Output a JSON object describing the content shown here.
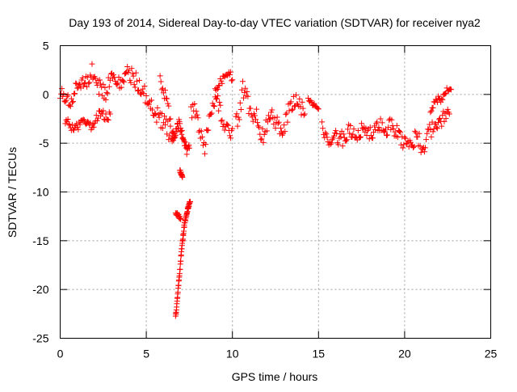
{
  "chart_data": {
    "type": "scatter",
    "title": "Day 193 of 2014, Sidereal Day-to-day VTEC variation (SDTVAR) for receiver nya2",
    "xlabel": "GPS time / hours",
    "ylabel": "SDTVAR / TECUs",
    "xlim": [
      0,
      25
    ],
    "ylim": [
      -25,
      5
    ],
    "xticks": [
      0,
      5,
      10,
      15,
      20,
      25
    ],
    "yticks": [
      5,
      0,
      -5,
      -10,
      -15,
      -20,
      -25
    ],
    "grid": true,
    "marker": "+",
    "color": "#ff0000",
    "series": [
      {
        "name": "SDTVAR",
        "segments": [
          {
            "x": [
              0.0,
              0.2,
              0.4,
              0.6,
              0.8,
              1.0,
              1.2,
              1.4,
              1.6,
              1.8,
              2.0,
              2.2,
              2.4,
              2.6,
              2.8,
              3.0,
              3.2,
              3.4,
              3.6,
              3.8,
              4.0,
              4.2,
              4.4,
              4.6,
              4.8,
              5.0,
              5.2,
              5.4,
              5.6,
              5.8,
              6.0,
              6.2,
              6.4,
              6.6
            ],
            "y": [
              0.5,
              -0.5,
              0.5,
              -1.0,
              0.0,
              0.5,
              1.0,
              1.5,
              1.5,
              2.5,
              1.5,
              1.0,
              0.5,
              0.0,
              1.0,
              2.0,
              1.5,
              1.0,
              1.5,
              2.0,
              2.0,
              2.0,
              1.5,
              1.0,
              0.5,
              -0.5,
              -1.0,
              -1.5,
              -2.0,
              -2.5,
              -3.0,
              -3.5,
              -4.0,
              -4.5
            ],
            "spread": 1.8
          },
          {
            "x": [
              0.3,
              0.5,
              0.7,
              0.9,
              1.1,
              1.3,
              1.5,
              1.7,
              1.9,
              2.1,
              2.3,
              2.5,
              2.7,
              2.9
            ],
            "y": [
              -2.5,
              -3.0,
              -3.5,
              -3.5,
              -3.0,
              -2.5,
              -3.0,
              -3.5,
              -3.0,
              -2.5,
              -2.0,
              -2.0,
              -2.5,
              -2.0
            ],
            "spread": 1.0
          },
          {
            "x": [
              5.8,
              6.0,
              6.2,
              6.4
            ],
            "y": [
              1.5,
              0.5,
              -1.0,
              -2.5
            ],
            "spread": 1.5
          },
          {
            "x": [
              6.5,
              6.6,
              6.7,
              6.8,
              6.9,
              7.0,
              7.1,
              7.2,
              7.3,
              7.4,
              7.5
            ],
            "y": [
              -4.0,
              -4.5,
              -4.0,
              -3.5,
              -3.0,
              -3.5,
              -4.0,
              -5.0,
              -5.5,
              -6.0,
              -5.5
            ],
            "spread": 1.0
          },
          {
            "x": [
              6.95,
              7.0,
              7.05,
              7.1
            ],
            "y": [
              -7.8,
              -8.0,
              -8.3,
              -8.5
            ],
            "spread": 0.3
          },
          {
            "x": [
              6.7,
              6.75,
              6.8,
              6.85,
              6.9,
              6.95,
              7.0,
              7.05,
              7.1,
              7.15,
              7.2,
              7.25,
              7.3,
              7.35,
              7.4,
              7.45,
              7.5,
              7.55
            ],
            "y": [
              -22.8,
              -22.0,
              -21.0,
              -20.0,
              -19.0,
              -18.0,
              -17.0,
              -16.0,
              -15.0,
              -14.3,
              -13.6,
              -13.0,
              -12.6,
              -12.2,
              -11.8,
              -11.5,
              -11.2,
              -11.0
            ],
            "spread": 0.4
          },
          {
            "x": [
              6.7,
              6.8,
              6.9,
              7.0
            ],
            "y": [
              -12.2,
              -12.3,
              -12.5,
              -12.8
            ],
            "spread": 0.3
          },
          {
            "x": [
              7.6,
              7.8,
              8.0,
              8.2,
              8.4,
              8.6,
              8.8,
              9.0,
              9.2,
              9.4,
              9.6,
              9.8,
              10.0
            ],
            "y": [
              -2.0,
              -1.5,
              -3.0,
              -4.0,
              -5.5,
              -3.0,
              -2.0,
              0.0,
              -1.0,
              -2.5,
              -3.5,
              -4.0,
              -3.5
            ],
            "spread": 1.5
          },
          {
            "x": [
              9.0,
              9.2,
              9.4,
              9.6,
              9.8,
              10.0
            ],
            "y": [
              0.5,
              1.0,
              1.5,
              2.0,
              2.5,
              1.5
            ],
            "spread": 0.8
          },
          {
            "x": [
              10.2,
              10.4,
              10.6,
              10.8,
              11.0,
              11.2,
              11.4,
              11.6,
              11.8,
              12.0,
              12.2,
              12.4,
              12.6,
              12.8,
              13.0,
              13.2,
              13.4,
              13.6,
              13.8,
              14.0,
              14.2
            ],
            "y": [
              -3.0,
              -2.5,
              0.5,
              0.0,
              -1.5,
              -3.0,
              -2.0,
              -3.5,
              -4.5,
              -3.0,
              -2.0,
              -2.5,
              -3.0,
              -4.0,
              -3.5,
              -2.0,
              -1.5,
              -0.5,
              -1.0,
              -1.5,
              -2.0
            ],
            "spread": 1.8
          },
          {
            "x": [
              15.2,
              15.4,
              15.6,
              15.8,
              16.0,
              16.2,
              16.4,
              16.6,
              16.8,
              17.0,
              17.2,
              17.4,
              17.6,
              17.8,
              18.0,
              18.2,
              18.4,
              18.6,
              18.8,
              19.0,
              19.2,
              19.4,
              19.6,
              19.8,
              20.0,
              20.2,
              20.4,
              20.6,
              20.8,
              21.0,
              21.2,
              21.4,
              21.6,
              21.8,
              22.0,
              22.2,
              22.4,
              22.6
            ],
            "y": [
              -3.5,
              -4.5,
              -5.0,
              -4.5,
              -4.0,
              -4.5,
              -4.5,
              -4.0,
              -3.5,
              -4.0,
              -4.5,
              -4.0,
              -3.5,
              -3.5,
              -4.0,
              -4.0,
              -3.5,
              -3.0,
              -3.5,
              -3.5,
              -3.0,
              -3.5,
              -4.0,
              -4.5,
              -5.0,
              -5.5,
              -5.0,
              -4.5,
              -4.5,
              -5.5,
              -5.0,
              -4.0,
              -3.5,
              -3.0,
              -2.5,
              -2.5,
              -2.0,
              -2.0
            ],
            "spread": 1.6
          },
          {
            "x": [
              21.5,
              21.7,
              21.9,
              22.1,
              22.3,
              22.5,
              22.7
            ],
            "y": [
              -1.5,
              -1.0,
              -0.5,
              -0.5,
              0.0,
              0.5,
              0.5
            ],
            "spread": 0.8
          },
          {
            "x": [
              14.4,
              14.6,
              14.8,
              15.0
            ],
            "y": [
              -0.5,
              -1.0,
              -1.0,
              -1.5
            ],
            "spread": 0.5
          }
        ]
      }
    ]
  }
}
